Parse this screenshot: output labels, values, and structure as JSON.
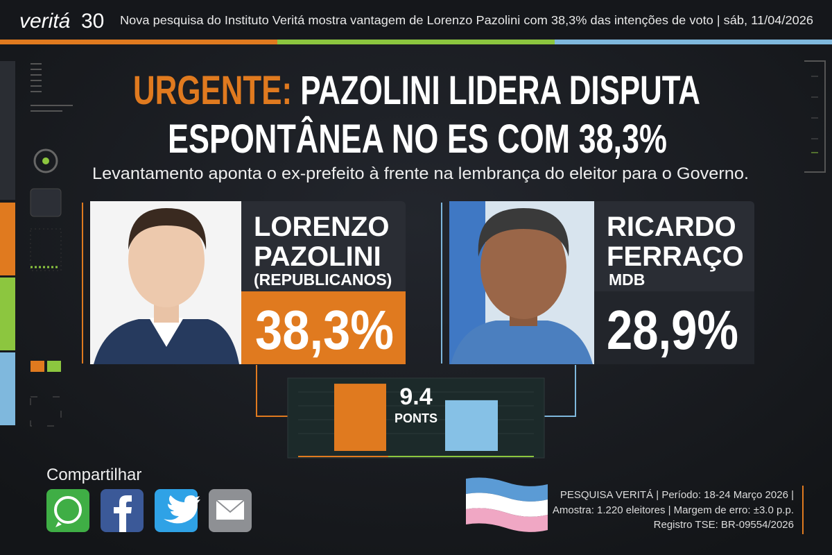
{
  "header": {
    "logo": "veritá",
    "logo_number": "30",
    "ticker": "Nova pesquisa do Instituto Veritá mostra vantagem de Lorenzo Pazolini com 38,3% das intenções de voto | sáb, 11/04/2026"
  },
  "headline": {
    "kicker": "URGENTE:",
    "line1": "PAZOLINI LIDERA DISPUTA",
    "line2": "ESPONTÂNEA NO ES COM 38,3%",
    "subtitle": "Levantamento aponta o ex-prefeito à frente na lembrança do eleitor para o Governo."
  },
  "candidates": [
    {
      "name": [
        "LORENZO",
        "PAZOLINI"
      ],
      "party": "(REPUBLICANOS)",
      "percent": {
        "value": 38.3,
        "label": "38,3%"
      }
    },
    {
      "name": [
        "RICARDO",
        "FERRAÇO"
      ],
      "party": "MDB",
      "percent": {
        "value": 28.9,
        "label": "28,9%"
      }
    }
  ],
  "difference": {
    "value": 9.4,
    "unit": "PONTS"
  },
  "share": {
    "label": "Compartilhar"
  },
  "footer": {
    "lines": [
      "PESQUISA VERITÁ  | Período: 18-24 Março 2026  |",
      "Amostra: 1.220 eleitores | Margem de erro: ±3.0 p.p.",
      "Registro TSE: BR-09554/2026"
    ]
  }
}
